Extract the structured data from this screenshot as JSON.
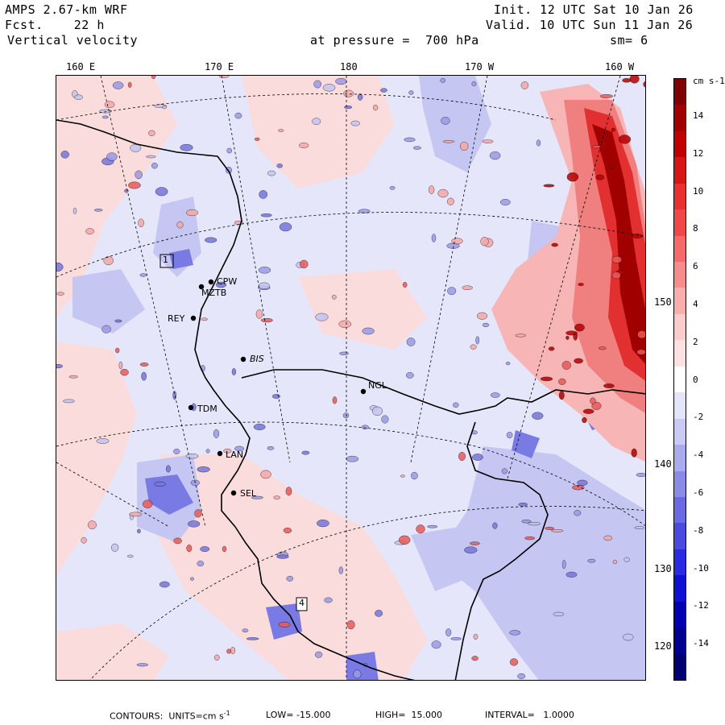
{
  "header": {
    "model": "AMPS 2.67-km WRF",
    "fcst_label": "Fcst.",
    "fcst_value": "22 h",
    "field": "Vertical velocity",
    "init": "Init. 12 UTC Sat 10 Jan 26",
    "valid": "Valid. 10 UTC Sun 11 Jan 26",
    "pressure": "at pressure =  700 hPa",
    "smooth": "sm= 6"
  },
  "longitude_labels": [
    "160 E",
    "170 E",
    "180",
    "170 W",
    "160 W"
  ],
  "latitude_labels": [
    "150 W",
    "140 W",
    "130 W",
    "120 W"
  ],
  "colorbar": {
    "units": "cm s-1",
    "tick_labels": [
      "14",
      "12",
      "10",
      "8",
      "6",
      "4",
      "2",
      "0",
      "-2",
      "-4",
      "-6",
      "-8",
      "-10",
      "-12",
      "-14"
    ],
    "colors": [
      "#7f0000",
      "#a00000",
      "#c00000",
      "#d61515",
      "#e83030",
      "#f04848",
      "#f46a6a",
      "#f78c8c",
      "#f9aeae",
      "#fbcccc",
      "#fde0e0",
      "#ffffff",
      "#e4e4fb",
      "#cacaf5",
      "#aaaaee",
      "#8a8ae8",
      "#6a6ae2",
      "#4a4ae0",
      "#2a2ae0",
      "#1010d0",
      "#0000b0",
      "#000090",
      "#000070"
    ]
  },
  "stations": [
    {
      "code": "CPW"
    },
    {
      "code": "MZTB"
    },
    {
      "code": "REY"
    },
    {
      "code": "BIS"
    },
    {
      "code": "NGL"
    },
    {
      "code": "TDM"
    },
    {
      "code": "LAN"
    },
    {
      "code": "SEL"
    }
  ],
  "boxes": [
    "1",
    "4"
  ],
  "footer": {
    "contours": "CONTOURS:  UNITS=cm s",
    "units_sup": "-1",
    "low": "LOW= -15.000",
    "high": "HIGH=  15.000",
    "interval": "INTERVAL=   1.0000"
  }
}
